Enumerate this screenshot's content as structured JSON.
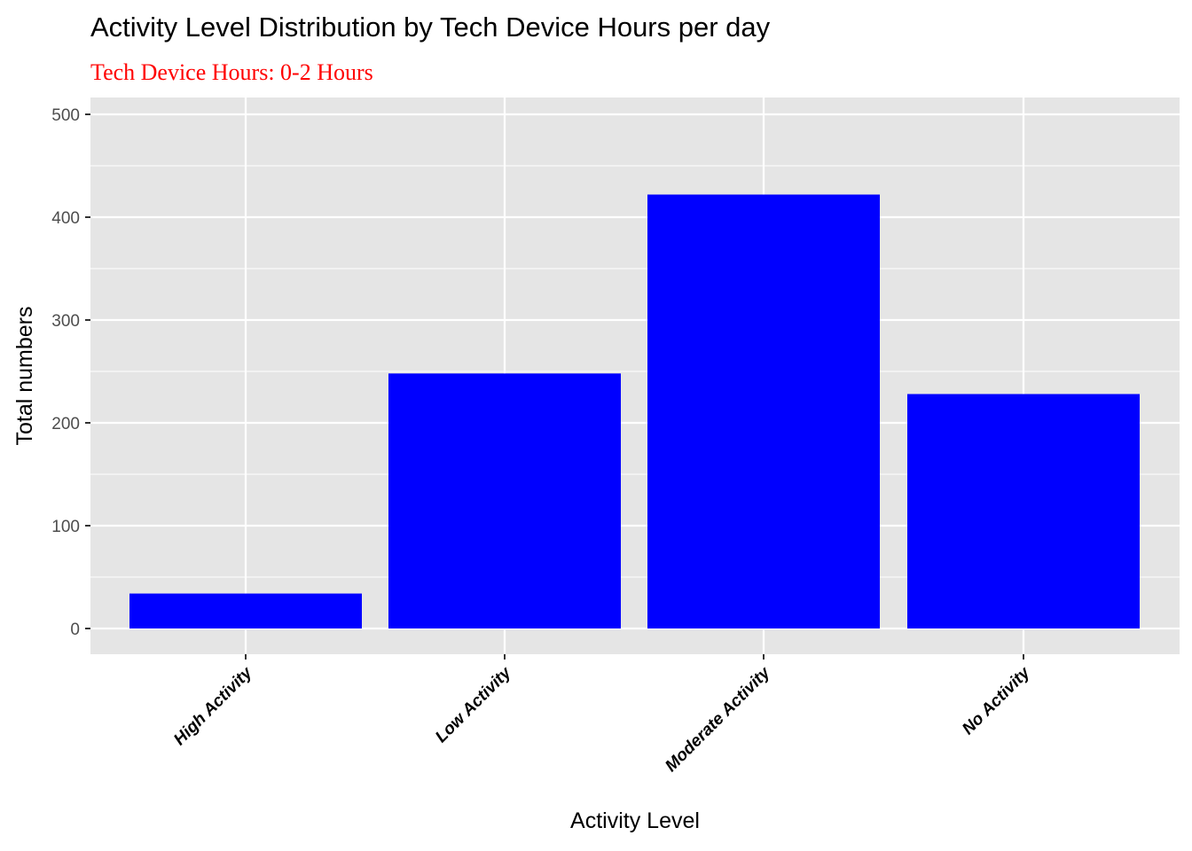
{
  "chart_data": {
    "type": "bar",
    "title": "Activity Level Distribution by Tech Device Hours per day",
    "subtitle": "Tech Device Hours: 0-2 Hours",
    "xlabel": "Activity Level",
    "ylabel": "Total numbers",
    "categories": [
      "High Activity",
      "Low Activity",
      "Moderate Activity",
      "No Activity"
    ],
    "values": [
      34,
      248,
      422,
      228
    ],
    "ylim": [
      0,
      500
    ],
    "yticks": [
      0,
      100,
      200,
      300,
      400,
      500
    ],
    "ytick_labels": [
      "0",
      "100",
      "200",
      "300",
      "400",
      "500"
    ],
    "grid": true,
    "legend": "none"
  },
  "colors": {
    "bar_fill": "#0000ff",
    "panel_background": "#e5e5e5",
    "grid": "#ffffff",
    "subtitle": "#ff0000"
  }
}
